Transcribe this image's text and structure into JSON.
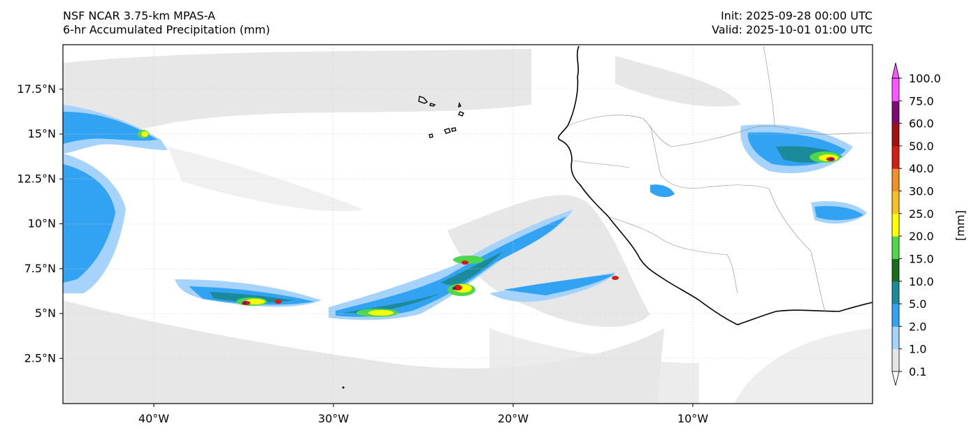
{
  "header": {
    "model": "NSF NCAR 3.75-km MPAS-A",
    "field": "6-hr Accumulated Precipitation (mm)",
    "init": "Init: 2025-09-28 00:00 UTC",
    "valid": "Valid: 2025-10-01 01:00 UTC"
  },
  "map": {
    "lon_range": [
      -45,
      0
    ],
    "lat_range": [
      0,
      20
    ],
    "lon_ticks": [
      {
        "value": -40,
        "label": "40°W"
      },
      {
        "value": -30,
        "label": "30°W"
      },
      {
        "value": -20,
        "label": "20°W"
      },
      {
        "value": -10,
        "label": "10°W"
      }
    ],
    "lat_ticks": [
      {
        "value": 2.5,
        "label": "2.5°N"
      },
      {
        "value": 5,
        "label": "5°N"
      },
      {
        "value": 7.5,
        "label": "7.5°N"
      },
      {
        "value": 10,
        "label": "10°N"
      },
      {
        "value": 12.5,
        "label": "12.5°N"
      },
      {
        "value": 15,
        "label": "15°N"
      },
      {
        "value": 17.5,
        "label": "17.5°N"
      }
    ],
    "gridlines": true
  },
  "colorbar": {
    "unit_label": "[mm]",
    "levels": [
      {
        "label": "0.1",
        "color": "#e6e6e6"
      },
      {
        "label": "1.0",
        "color": "#a6d3fb"
      },
      {
        "label": "2.0",
        "color": "#31a3f2"
      },
      {
        "label": "5.0",
        "color": "#1b8a9a"
      },
      {
        "label": "10.0",
        "color": "#1c6b1c"
      },
      {
        "label": "15.0",
        "color": "#4fd64f"
      },
      {
        "label": "20.0",
        "color": "#ffff00"
      },
      {
        "label": "25.0",
        "color": "#f6c026"
      },
      {
        "label": "30.0",
        "color": "#f0902a"
      },
      {
        "label": "40.0",
        "color": "#d21e14"
      },
      {
        "label": "50.0",
        "color": "#a31010"
      },
      {
        "label": "60.0",
        "color": "#7a0c74"
      },
      {
        "label": "75.0",
        "color": "#ff55ff"
      },
      {
        "label": "100.0",
        "color": ""
      }
    ]
  }
}
